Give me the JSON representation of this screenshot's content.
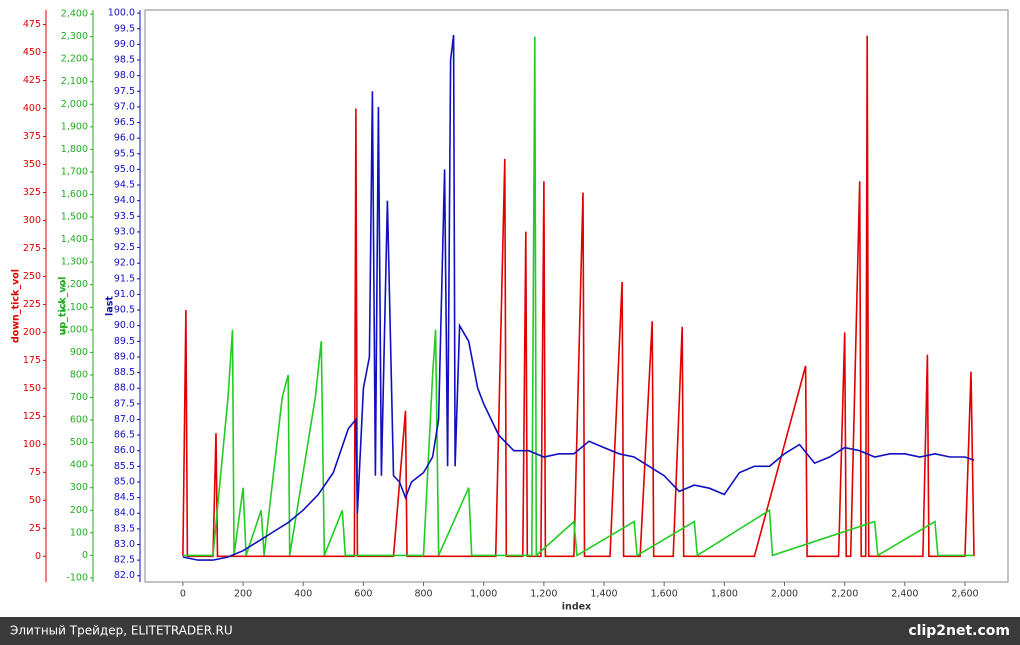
{
  "chart_data": {
    "type": "line",
    "xlabel": "index",
    "xlim": [
      -126,
      2743
    ],
    "xticks": [
      0,
      200,
      400,
      600,
      800,
      {
        "value": 1000,
        "label": "1,000"
      },
      {
        "value": 1200,
        "label": "1,200"
      },
      {
        "value": 1400,
        "label": "1,400"
      },
      {
        "value": 1600,
        "label": "1,600"
      },
      {
        "value": 1800,
        "label": "1,800"
      },
      {
        "value": 2000,
        "label": "2,000"
      },
      {
        "value": 2200,
        "label": "2,200"
      },
      {
        "value": 2400,
        "label": "2,400"
      },
      {
        "value": 2600,
        "label": "2,600"
      }
    ],
    "ylabel": "last",
    "ylim": [
      81.8,
      100.1
    ],
    "yticks": [
      {
        "value": 82,
        "label": "82.0"
      },
      82.5,
      {
        "value": 83,
        "label": "83.0"
      },
      83.5,
      {
        "value": 84,
        "label": "84.0"
      },
      84.5,
      {
        "value": 85,
        "label": "85.0"
      },
      85.5,
      {
        "value": 86,
        "label": "86.0"
      },
      86.5,
      {
        "value": 87,
        "label": "87.0"
      },
      87.5,
      {
        "value": 88,
        "label": "88.0"
      },
      88.5,
      {
        "value": 89,
        "label": "89.0"
      },
      89.5,
      {
        "value": 90,
        "label": "90.0"
      },
      90.5,
      {
        "value": 91,
        "label": "91.0"
      },
      91.5,
      {
        "value": 92,
        "label": "92.0"
      },
      92.5,
      {
        "value": 93,
        "label": "93.0"
      },
      93.5,
      {
        "value": 94,
        "label": "94.0"
      },
      94.5,
      {
        "value": 95,
        "label": "95.0"
      },
      95.5,
      {
        "value": 96,
        "label": "96.0"
      },
      96.5,
      {
        "value": 97,
        "label": "97.0"
      },
      97.5,
      {
        "value": 98,
        "label": "98.0"
      },
      98.5,
      {
        "value": 99,
        "label": "99.0"
      },
      99.5,
      {
        "value": 100,
        "label": "100.0"
      }
    ],
    "y2label": "up_tick_vol",
    "y2lim": [
      -118,
      2418
    ],
    "y2ticks": [
      -100,
      0,
      100,
      200,
      300,
      400,
      500,
      600,
      700,
      800,
      900,
      {
        "value": 1000,
        "label": "1,000"
      },
      {
        "value": 1100,
        "label": "1,100"
      },
      {
        "value": 1200,
        "label": "1,200"
      },
      {
        "value": 1300,
        "label": "1,300"
      },
      {
        "value": 1400,
        "label": "1,400"
      },
      {
        "value": 1500,
        "label": "1,500"
      },
      {
        "value": 1600,
        "label": "1,600"
      },
      {
        "value": 1700,
        "label": "1,700"
      },
      {
        "value": 1800,
        "label": "1,800"
      },
      {
        "value": 1900,
        "label": "1,900"
      },
      {
        "value": 2000,
        "label": "2,000"
      },
      {
        "value": 2100,
        "label": "2,100"
      },
      {
        "value": 2200,
        "label": "2,200"
      },
      {
        "value": 2300,
        "label": "2,300"
      },
      {
        "value": 2400,
        "label": "2,400"
      }
    ],
    "y3label": "down_tick_vol",
    "y3lim": [
      -23,
      488
    ],
    "y3ticks": [
      0,
      25,
      50,
      75,
      100,
      125,
      150,
      175,
      200,
      225,
      250,
      275,
      300,
      325,
      350,
      375,
      400,
      425,
      450,
      475
    ],
    "series": [
      {
        "name": "down_tick_vol",
        "color": "#e00000",
        "axis": "y3",
        "x": [
          0,
          10,
          15,
          100,
          110,
          115,
          570,
          575,
          580,
          700,
          740,
          745,
          1040,
          1070,
          1075,
          1130,
          1140,
          1145,
          1190,
          1200,
          1205,
          1300,
          1330,
          1335,
          1420,
          1460,
          1465,
          1520,
          1560,
          1565,
          1630,
          1660,
          1665,
          1900,
          2070,
          2075,
          2180,
          2200,
          2205,
          2220,
          2250,
          2255,
          2270,
          2275,
          2280,
          2460,
          2475,
          2480,
          2600,
          2620,
          2630
        ],
        "values": [
          0,
          220,
          0,
          0,
          110,
          0,
          0,
          400,
          0,
          0,
          130,
          0,
          0,
          355,
          0,
          0,
          290,
          0,
          0,
          335,
          0,
          0,
          325,
          0,
          0,
          245,
          0,
          0,
          210,
          0,
          0,
          205,
          0,
          0,
          170,
          0,
          0,
          200,
          0,
          0,
          335,
          0,
          0,
          465,
          0,
          0,
          180,
          0,
          0,
          165,
          0
        ]
      },
      {
        "name": "up_tick_vol",
        "color": "#22cc22",
        "axis": "y2",
        "x": [
          0,
          100,
          150,
          165,
          170,
          200,
          210,
          260,
          270,
          330,
          350,
          355,
          440,
          460,
          470,
          530,
          540,
          800,
          830,
          840,
          850,
          950,
          960,
          1160,
          1170,
          1175,
          1300,
          1310,
          1500,
          1510,
          1700,
          1710,
          1950,
          1960,
          2300,
          2310,
          2500,
          2510,
          2630
        ],
        "values": [
          0,
          0,
          700,
          1000,
          0,
          300,
          0,
          200,
          0,
          700,
          800,
          0,
          700,
          950,
          0,
          200,
          0,
          0,
          800,
          1000,
          0,
          300,
          0,
          0,
          2300,
          0,
          150,
          0,
          150,
          0,
          150,
          0,
          200,
          0,
          150,
          0,
          150,
          0,
          0
        ]
      },
      {
        "name": "last",
        "color": "#1010c0",
        "axis": "y",
        "x": [
          0,
          50,
          100,
          150,
          200,
          250,
          300,
          350,
          400,
          450,
          500,
          550,
          575,
          580,
          600,
          620,
          630,
          640,
          650,
          660,
          680,
          700,
          720,
          740,
          760,
          800,
          830,
          850,
          870,
          880,
          890,
          900,
          905,
          920,
          950,
          980,
          1000,
          1050,
          1100,
          1150,
          1200,
          1250,
          1300,
          1350,
          1400,
          1450,
          1500,
          1550,
          1600,
          1650,
          1700,
          1750,
          1800,
          1850,
          1900,
          1950,
          2000,
          2050,
          2100,
          2150,
          2200,
          2250,
          2300,
          2350,
          2400,
          2450,
          2500,
          2550,
          2600,
          2630
        ],
        "values": [
          82.6,
          82.5,
          82.5,
          82.6,
          82.8,
          83.1,
          83.4,
          83.7,
          84.1,
          84.6,
          85.3,
          86.7,
          87.0,
          84.0,
          88.0,
          89.0,
          97.5,
          85.2,
          97.0,
          85.2,
          94.0,
          85.2,
          85.0,
          84.5,
          85.0,
          85.3,
          85.8,
          87.0,
          95.0,
          85.5,
          98.5,
          99.3,
          85.5,
          90.0,
          89.5,
          88.0,
          87.5,
          86.5,
          86.0,
          86.0,
          85.8,
          85.9,
          85.9,
          86.3,
          86.1,
          85.9,
          85.8,
          85.5,
          85.2,
          84.7,
          84.9,
          84.8,
          84.6,
          85.3,
          85.5,
          85.5,
          85.9,
          86.2,
          85.6,
          85.8,
          86.1,
          86.0,
          85.8,
          85.9,
          85.9,
          85.8,
          85.9,
          85.8,
          85.8,
          85.7
        ]
      }
    ]
  },
  "footer": {
    "left": "Элитный Трейдер, ELITETRADER.RU",
    "right": "clip2net.com"
  }
}
